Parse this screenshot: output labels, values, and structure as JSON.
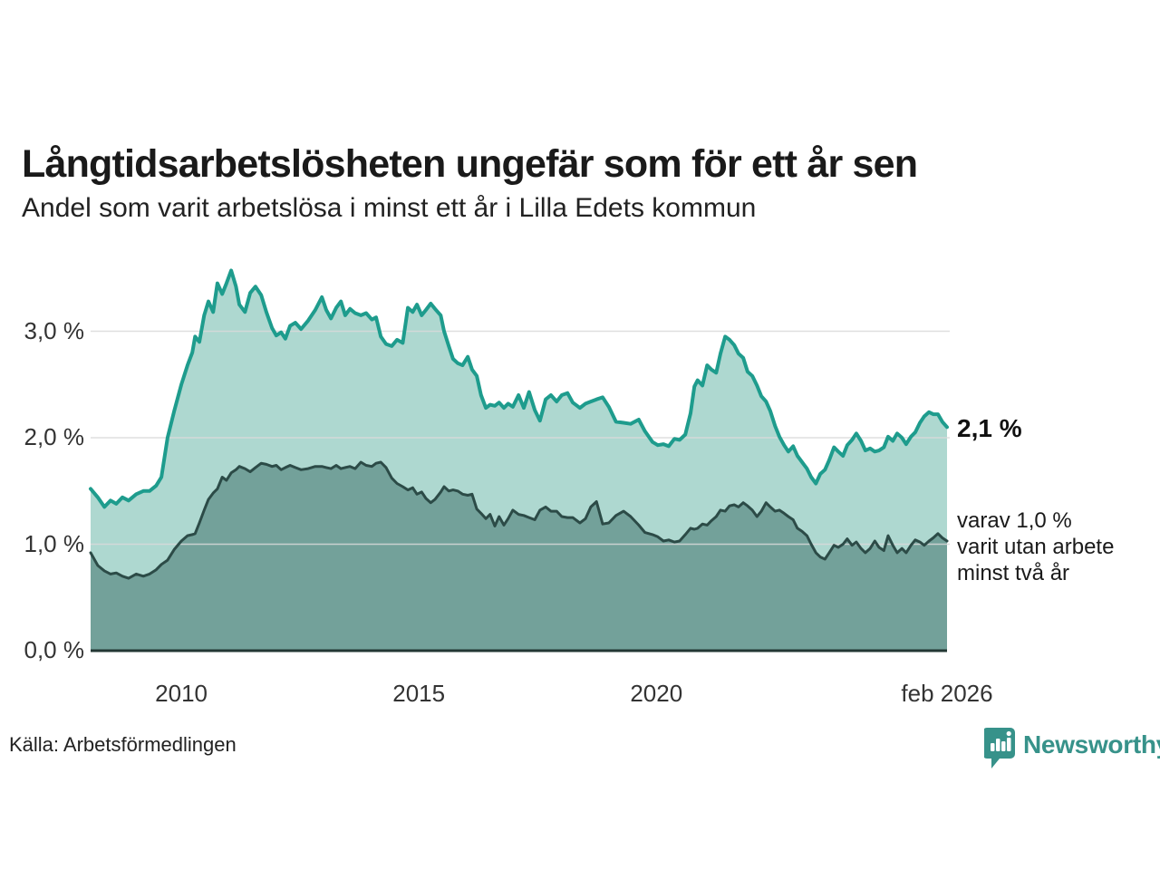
{
  "header": {
    "title": "Långtidsarbetslösheten ungefär som för ett år sen",
    "subtitle": "Andel som varit arbetslösa i minst ett år i Lilla Edets kommun"
  },
  "annotations": {
    "latest_total": "2,1 %",
    "latest_detail": "varav 1,0 %\nvarit utan arbete\nminst två år"
  },
  "footer": {
    "source": "Källa: Arbetsförmedlingen",
    "brand": "Newsworthy"
  },
  "colors": {
    "line_total": "#1e9c8d",
    "fill_total": "#aed8d0",
    "line_two_years": "#2c4b47",
    "fill_two_years": "#73a19a",
    "gridline": "#d9d9d9",
    "baseline": "#233734",
    "brand_teal": "#37928a",
    "text_dark": "#1a1a1a"
  },
  "chart_data": {
    "type": "area",
    "title": "Långtidsarbetslösheten ungefär som för ett år sen",
    "subtitle": "Andel som varit arbetslösa i minst ett år i Lilla Edets kommun",
    "unit": "%",
    "grid": true,
    "legend": "none",
    "xlim": [
      2008.09,
      2026.12
    ],
    "ylim": [
      0,
      3.8
    ],
    "x_ticks": [
      {
        "x": 2010,
        "label": "2010"
      },
      {
        "x": 2015,
        "label": "2015"
      },
      {
        "x": 2020,
        "label": "2020"
      },
      {
        "x": 2026.12,
        "label": "feb 2026"
      }
    ],
    "y_ticks": [
      {
        "y": 0,
        "label": "0,0 %"
      },
      {
        "y": 1,
        "label": "1,0 %"
      },
      {
        "y": 2,
        "label": "2,0 %"
      },
      {
        "y": 3,
        "label": "3,0 %"
      }
    ],
    "x": [
      2008.09,
      2008.24,
      2008.38,
      2008.51,
      2008.63,
      2008.76,
      2008.89,
      2009.05,
      2009.2,
      2009.33,
      2009.47,
      2009.58,
      2009.71,
      2009.85,
      2010.0,
      2010.13,
      2010.23,
      2010.29,
      2010.38,
      2010.48,
      2010.57,
      2010.67,
      2010.76,
      2010.86,
      2010.95,
      2011.05,
      2011.15,
      2011.22,
      2011.34,
      2011.45,
      2011.56,
      2011.68,
      2011.79,
      2011.91,
      2012.0,
      2012.1,
      2012.19,
      2012.29,
      2012.4,
      2012.52,
      2012.67,
      2012.82,
      2012.96,
      2013.05,
      2013.15,
      2013.26,
      2013.36,
      2013.45,
      2013.55,
      2013.66,
      2013.78,
      2013.89,
      2014.01,
      2014.1,
      2014.2,
      2014.31,
      2014.43,
      2014.54,
      2014.66,
      2014.77,
      2014.87,
      2014.96,
      2015.06,
      2015.15,
      2015.25,
      2015.34,
      2015.46,
      2015.53,
      2015.63,
      2015.72,
      2015.82,
      2015.92,
      2016.03,
      2016.12,
      2016.22,
      2016.31,
      2016.41,
      2016.5,
      2016.6,
      2016.69,
      2016.79,
      2016.88,
      2016.98,
      2017.1,
      2017.21,
      2017.32,
      2017.44,
      2017.55,
      2017.67,
      2017.78,
      2017.9,
      2018.01,
      2018.13,
      2018.24,
      2018.39,
      2018.51,
      2018.62,
      2018.74,
      2018.87,
      2019.0,
      2019.15,
      2019.31,
      2019.46,
      2019.63,
      2019.76,
      2019.92,
      2020.03,
      2020.15,
      2020.26,
      2020.38,
      2020.49,
      2020.61,
      2020.72,
      2020.8,
      2020.87,
      2020.97,
      2021.07,
      2021.16,
      2021.26,
      2021.35,
      2021.45,
      2021.54,
      2021.64,
      2021.73,
      2021.83,
      2021.92,
      2022.02,
      2022.12,
      2022.21,
      2022.31,
      2022.4,
      2022.5,
      2022.59,
      2022.69,
      2022.78,
      2022.88,
      2022.97,
      2023.07,
      2023.17,
      2023.26,
      2023.36,
      2023.45,
      2023.55,
      2023.64,
      2023.74,
      2023.83,
      2023.93,
      2024.02,
      2024.12,
      2024.21,
      2024.31,
      2024.4,
      2024.5,
      2024.6,
      2024.69,
      2024.79,
      2024.88,
      2024.98,
      2025.07,
      2025.17,
      2025.26,
      2025.36,
      2025.45,
      2025.55,
      2025.64,
      2025.74,
      2025.83,
      2025.93,
      2026.02,
      2026.12
    ],
    "series": [
      {
        "name": "arbetslösa minst ett år",
        "line_color": "#1e9c8d",
        "fill_color": "#aed8d0",
        "last_value_label": "2,1 %",
        "values": [
          1.52,
          1.44,
          1.35,
          1.41,
          1.38,
          1.44,
          1.41,
          1.47,
          1.5,
          1.5,
          1.55,
          1.63,
          2.0,
          2.25,
          2.5,
          2.68,
          2.8,
          2.95,
          2.9,
          3.15,
          3.28,
          3.18,
          3.45,
          3.35,
          3.45,
          3.57,
          3.42,
          3.25,
          3.18,
          3.36,
          3.42,
          3.34,
          3.18,
          3.03,
          2.96,
          2.99,
          2.93,
          3.05,
          3.08,
          3.02,
          3.1,
          3.2,
          3.32,
          3.2,
          3.12,
          3.22,
          3.28,
          3.15,
          3.21,
          3.17,
          3.15,
          3.17,
          3.11,
          3.13,
          2.95,
          2.88,
          2.86,
          2.92,
          2.89,
          3.22,
          3.18,
          3.25,
          3.15,
          3.2,
          3.26,
          3.21,
          3.15,
          3.0,
          2.86,
          2.74,
          2.7,
          2.68,
          2.76,
          2.64,
          2.58,
          2.4,
          2.28,
          2.31,
          2.3,
          2.33,
          2.28,
          2.32,
          2.29,
          2.4,
          2.28,
          2.43,
          2.26,
          2.16,
          2.36,
          2.4,
          2.34,
          2.4,
          2.42,
          2.33,
          2.28,
          2.32,
          2.34,
          2.36,
          2.38,
          2.29,
          2.15,
          2.14,
          2.13,
          2.17,
          2.06,
          1.96,
          1.93,
          1.94,
          1.92,
          1.99,
          1.98,
          2.03,
          2.23,
          2.48,
          2.54,
          2.49,
          2.68,
          2.64,
          2.61,
          2.79,
          2.95,
          2.92,
          2.87,
          2.79,
          2.75,
          2.62,
          2.58,
          2.49,
          2.39,
          2.34,
          2.25,
          2.11,
          2.01,
          1.93,
          1.87,
          1.92,
          1.83,
          1.77,
          1.71,
          1.63,
          1.57,
          1.66,
          1.7,
          1.79,
          1.91,
          1.87,
          1.83,
          1.93,
          1.98,
          2.04,
          1.97,
          1.88,
          1.9,
          1.87,
          1.88,
          1.91,
          2.01,
          1.97,
          2.04,
          2.0,
          1.94,
          2.01,
          2.05,
          2.14,
          2.2,
          2.24,
          2.22,
          2.22,
          2.15,
          2.1
        ]
      },
      {
        "name": "varav utan arbete minst två år",
        "line_color": "#2c4b47",
        "fill_color": "#73a19a",
        "last_value_label": "1,0 %",
        "values": [
          0.92,
          0.8,
          0.75,
          0.72,
          0.73,
          0.7,
          0.68,
          0.72,
          0.7,
          0.72,
          0.76,
          0.81,
          0.85,
          0.95,
          1.03,
          1.08,
          1.09,
          1.1,
          1.2,
          1.32,
          1.42,
          1.48,
          1.52,
          1.63,
          1.6,
          1.67,
          1.7,
          1.73,
          1.71,
          1.68,
          1.72,
          1.76,
          1.75,
          1.73,
          1.74,
          1.7,
          1.72,
          1.74,
          1.72,
          1.7,
          1.71,
          1.73,
          1.73,
          1.72,
          1.71,
          1.74,
          1.71,
          1.72,
          1.73,
          1.71,
          1.77,
          1.74,
          1.73,
          1.76,
          1.77,
          1.72,
          1.62,
          1.57,
          1.54,
          1.51,
          1.53,
          1.47,
          1.49,
          1.43,
          1.39,
          1.42,
          1.49,
          1.54,
          1.5,
          1.51,
          1.5,
          1.47,
          1.46,
          1.47,
          1.33,
          1.29,
          1.24,
          1.28,
          1.17,
          1.26,
          1.18,
          1.24,
          1.32,
          1.28,
          1.27,
          1.25,
          1.23,
          1.32,
          1.35,
          1.31,
          1.31,
          1.26,
          1.25,
          1.25,
          1.2,
          1.24,
          1.35,
          1.4,
          1.19,
          1.2,
          1.27,
          1.31,
          1.26,
          1.18,
          1.11,
          1.09,
          1.07,
          1.03,
          1.04,
          1.02,
          1.03,
          1.09,
          1.15,
          1.14,
          1.15,
          1.19,
          1.18,
          1.22,
          1.26,
          1.32,
          1.31,
          1.36,
          1.37,
          1.35,
          1.39,
          1.36,
          1.32,
          1.26,
          1.31,
          1.39,
          1.35,
          1.31,
          1.32,
          1.29,
          1.26,
          1.23,
          1.15,
          1.12,
          1.08,
          1.0,
          0.92,
          0.88,
          0.86,
          0.92,
          0.99,
          0.97,
          1.0,
          1.05,
          0.99,
          1.02,
          0.96,
          0.92,
          0.96,
          1.03,
          0.97,
          0.94,
          1.08,
          0.99,
          0.92,
          0.96,
          0.92,
          0.99,
          1.04,
          1.02,
          0.99,
          1.03,
          1.06,
          1.1,
          1.06,
          1.03
        ]
      }
    ]
  }
}
